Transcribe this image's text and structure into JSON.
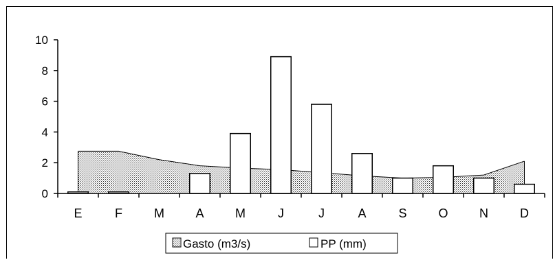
{
  "chart_data": {
    "type": "area",
    "categories": [
      "E",
      "F",
      "M",
      "A",
      "M",
      "J",
      "J",
      "A",
      "S",
      "O",
      "N",
      "D"
    ],
    "series": [
      {
        "name": "Gasto (m3/s)",
        "type": "area",
        "pattern": "dotted",
        "values": [
          2.75,
          2.75,
          2.2,
          1.8,
          1.65,
          1.55,
          1.35,
          1.15,
          1.0,
          1.05,
          1.2,
          2.1
        ]
      },
      {
        "name": "PP (mm)",
        "type": "bar",
        "fill": "#ffffff",
        "values": [
          0.1,
          0.1,
          0.0,
          1.3,
          3.9,
          8.9,
          5.8,
          2.6,
          1.0,
          1.8,
          1.0,
          0.6
        ]
      }
    ],
    "ylim": [
      0,
      10
    ],
    "yticks": [
      "0",
      "2",
      "4",
      "6",
      "8",
      "10"
    ],
    "grid": false,
    "legend_position": "bottom"
  }
}
